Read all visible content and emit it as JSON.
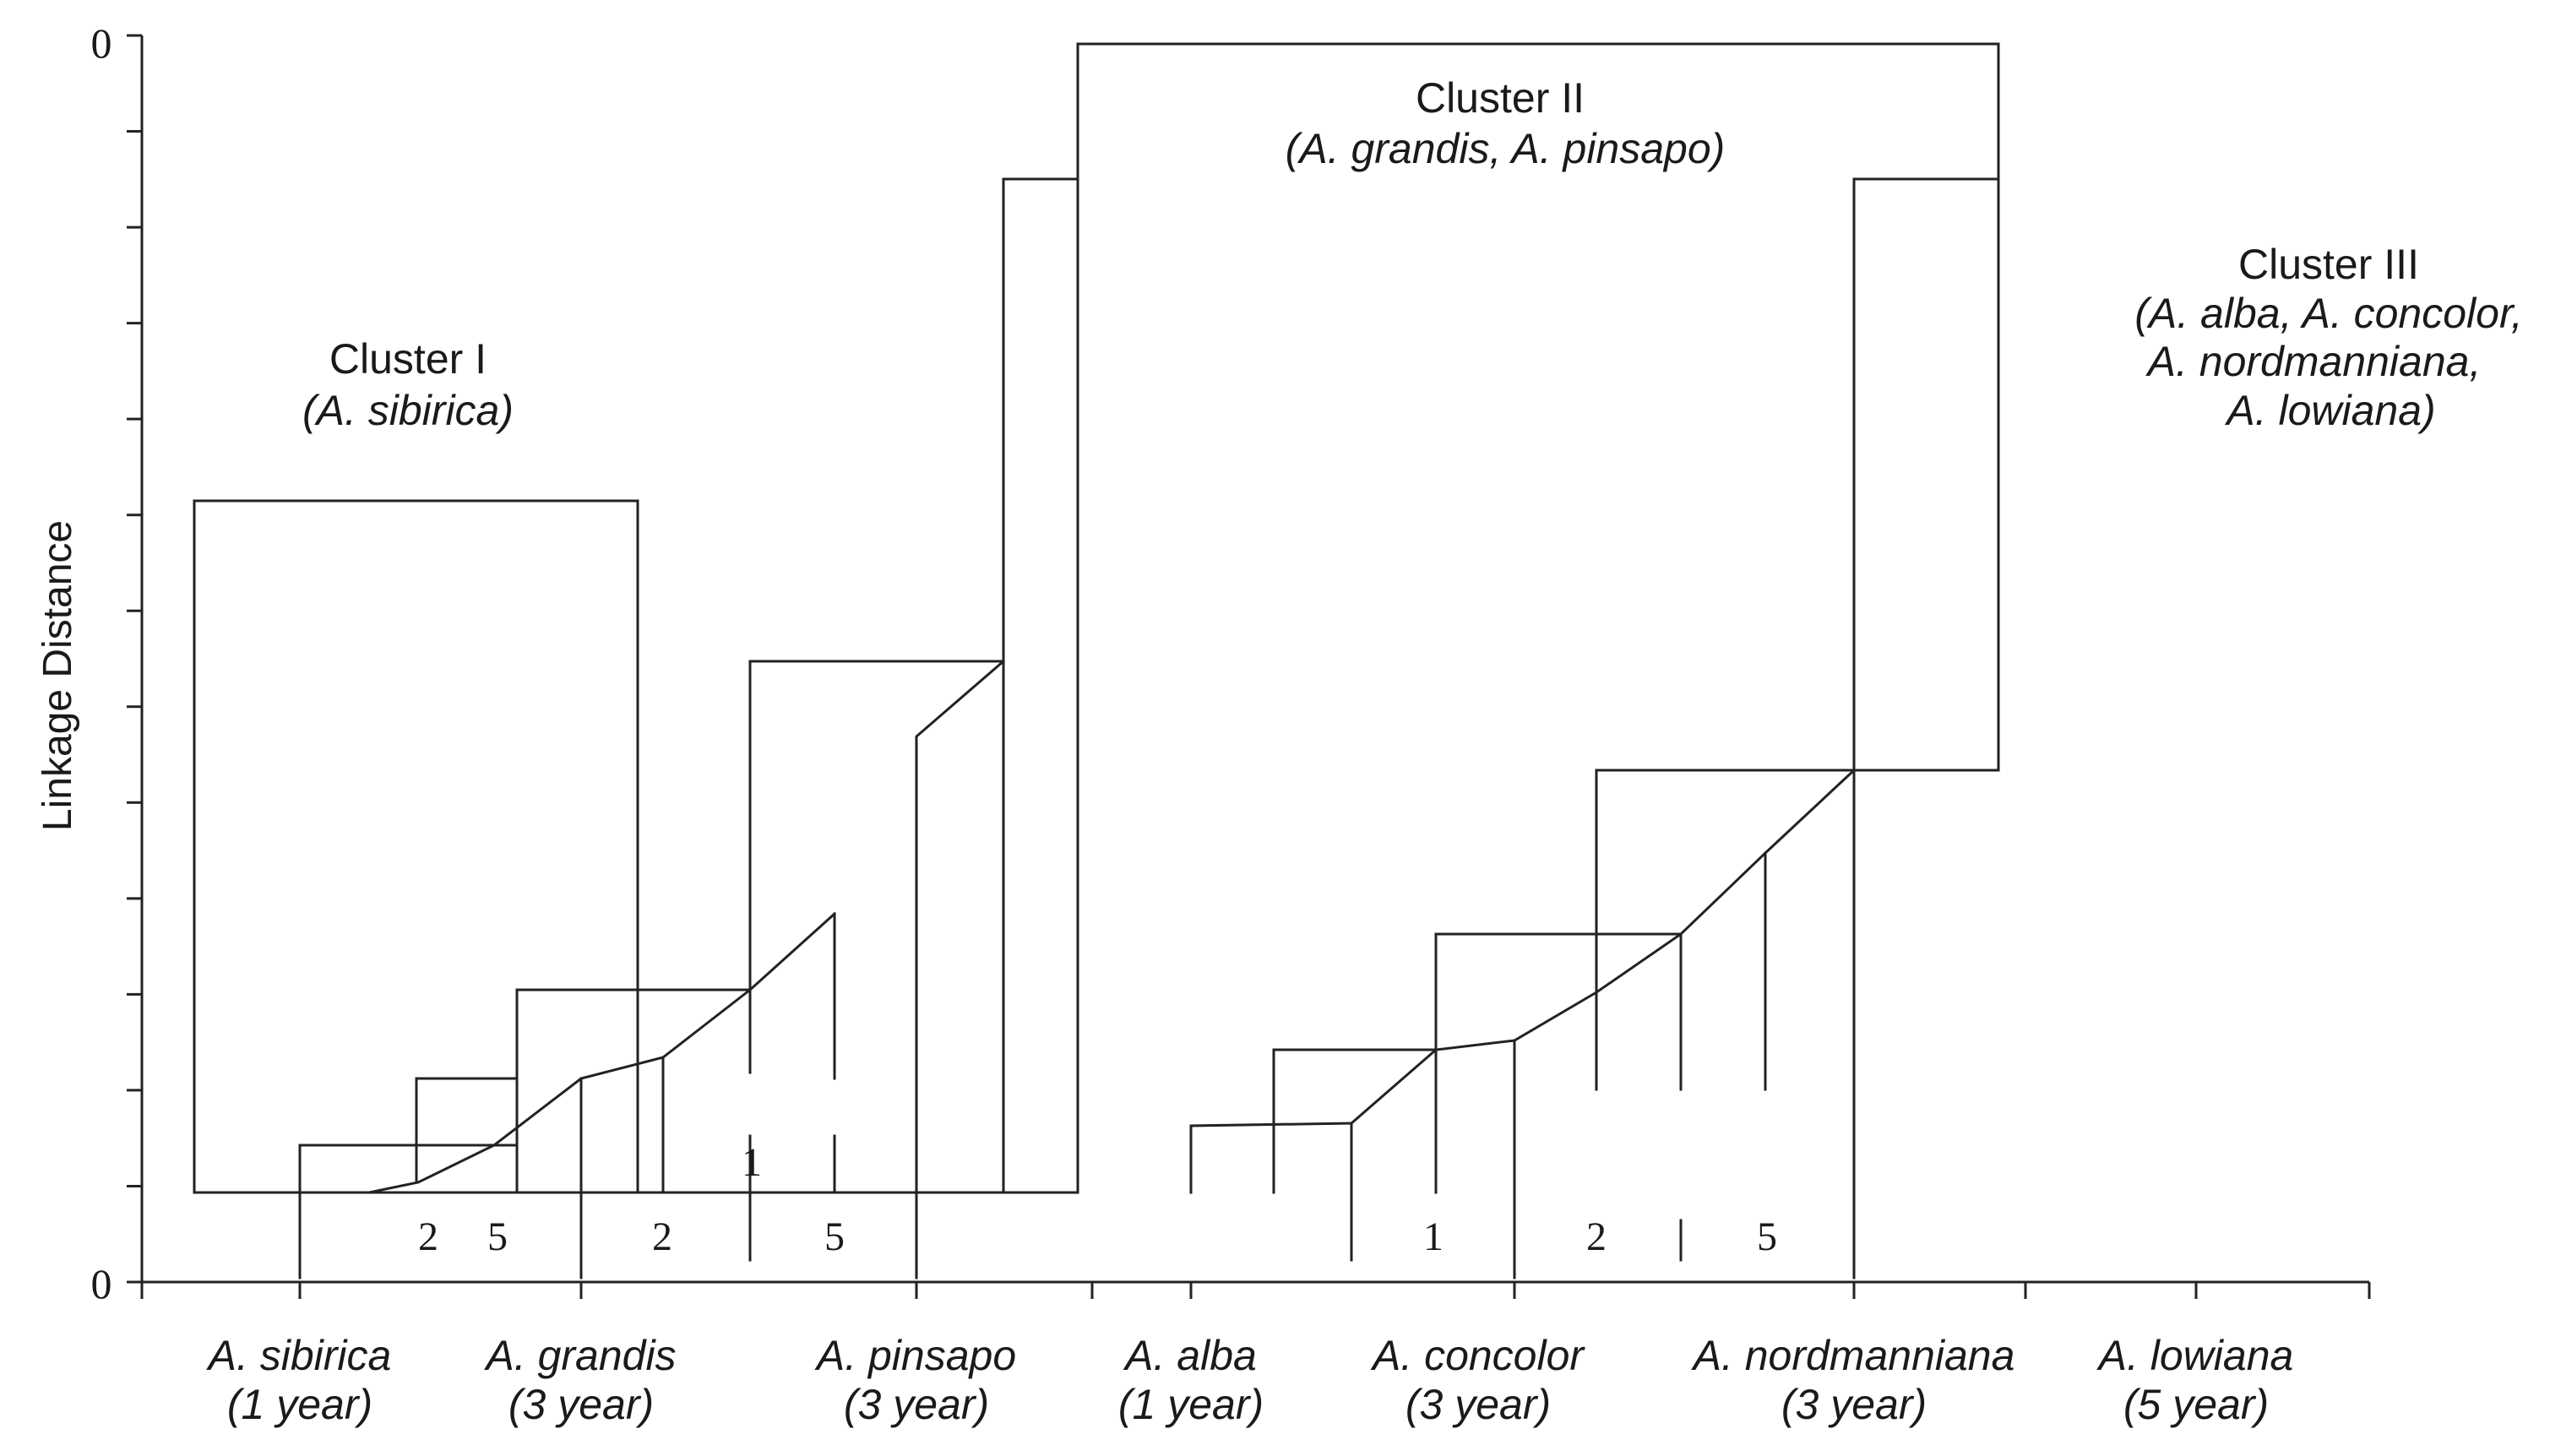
{
  "y_axis": {
    "label": "Linkage Distance",
    "tick_top": "0",
    "tick_bottom": "0"
  },
  "categories": [
    {
      "name": "A. sibirica",
      "age": "(1 year)"
    },
    {
      "name": "A. grandis",
      "age": "(3 year)"
    },
    {
      "name": "A. pinsapo",
      "age": "(3 year)"
    },
    {
      "name": "A. alba",
      "age": "(1 year)"
    },
    {
      "name": "A. concolor",
      "age": "(3 year)"
    },
    {
      "name": "A. nordmanniana",
      "age": "(3 year)"
    },
    {
      "name": "A. lowiana",
      "age": "(5 year)"
    }
  ],
  "clusters": [
    {
      "title": "Cluster I",
      "members": [
        "(A. sibirica)"
      ]
    },
    {
      "title": "Cluster II",
      "members": [
        "(A. grandis, A. pinsapo)"
      ]
    },
    {
      "title": "Cluster III",
      "members": [
        "(A. alba, A. concolor,",
        "A. nordmanniana,",
        "A. lowiana)"
      ]
    }
  ],
  "leaf_labels": {
    "left": [
      "2",
      "5",
      "2",
      "1",
      "5"
    ],
    "right": [
      "1",
      "2",
      "5"
    ]
  }
}
